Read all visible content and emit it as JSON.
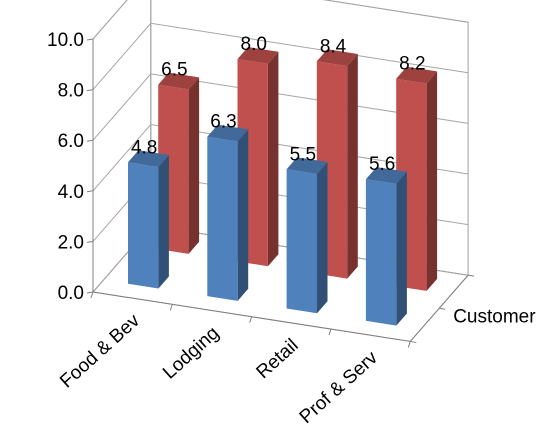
{
  "chart_data": {
    "type": "bar",
    "categories": [
      "Food & Bev",
      "Lodging",
      "Retail",
      "Prof & Serv"
    ],
    "series": [
      {
        "values": [
          4.8,
          6.3,
          5.5,
          5.6
        ],
        "color": "#4F81BD"
      },
      {
        "values": [
          6.5,
          8.0,
          8.4,
          8.2
        ],
        "color": "#C0504D"
      }
    ],
    "depth_labels": [
      "Customer"
    ],
    "y_ticks": [
      "0.0",
      "2.0",
      "4.0",
      "6.0",
      "8.0",
      "10.0"
    ],
    "ylim": [
      0,
      10
    ],
    "grid": true,
    "title": "",
    "xlabel": "",
    "ylabel": ""
  }
}
